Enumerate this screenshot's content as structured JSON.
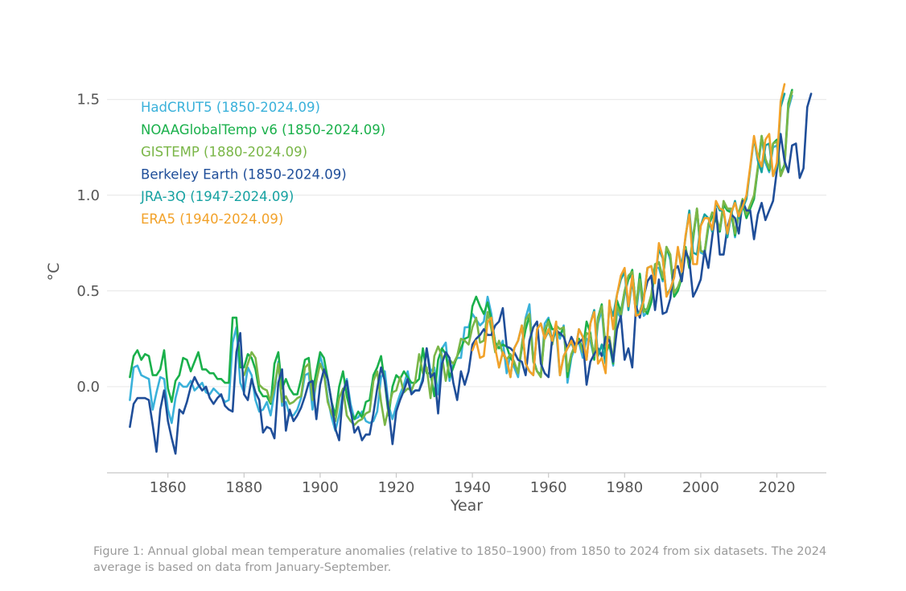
{
  "caption": "Figure 1: Annual global mean temperature anomalies (relative to 1850–1900) from 1850 to 2024 from six datasets. The 2024 average is based on data from January-September.",
  "chart_data": {
    "type": "line",
    "title": "",
    "xlabel": "Year",
    "ylabel": "°C",
    "xlim": [
      1844,
      2033
    ],
    "ylim": [
      -0.45,
      1.65
    ],
    "xticks": [
      1860,
      1880,
      1900,
      1920,
      1940,
      1960,
      1980,
      2000,
      2020
    ],
    "yticks": [
      0.0,
      0.5,
      1.0,
      1.5
    ],
    "xtick_labels": [
      "1860",
      "1880",
      "1900",
      "1920",
      "1940",
      "1960",
      "1980",
      "2000",
      "2020"
    ],
    "ytick_labels": [
      "0.0",
      "0.5",
      "1.0",
      "1.5"
    ],
    "grid": "horizontal",
    "legend_position": "top-left",
    "series": [
      {
        "name": "HadCRUT5 (1850-2024.09)",
        "color": "#3ab1da",
        "start": 1850,
        "values": [
          -0.07,
          0.1,
          0.11,
          0.06,
          0.05,
          0.04,
          -0.12,
          -0.03,
          0.05,
          0.04,
          -0.12,
          -0.19,
          -0.06,
          0.02,
          0.0,
          0.0,
          0.03,
          -0.02,
          0.0,
          0.02,
          -0.03,
          -0.04,
          -0.01,
          -0.03,
          -0.05,
          -0.08,
          -0.07,
          0.23,
          0.31,
          0.02,
          -0.03,
          0.1,
          0.06,
          -0.07,
          -0.13,
          -0.12,
          -0.08,
          -0.15,
          -0.03,
          0.13,
          -0.1,
          -0.08,
          -0.15,
          -0.15,
          -0.12,
          -0.06,
          0.06,
          0.07,
          -0.12,
          0.03,
          0.16,
          0.09,
          -0.06,
          -0.16,
          -0.23,
          -0.15,
          -0.03,
          0.04,
          -0.09,
          -0.17,
          -0.16,
          -0.13,
          -0.18,
          -0.19,
          -0.18,
          -0.13,
          0.05,
          0.08,
          -0.1,
          -0.17,
          -0.1,
          -0.04,
          0.01,
          0.08,
          -0.03,
          -0.02,
          -0.02,
          0.05,
          0.2,
          0.08,
          0.1,
          -0.04,
          0.2,
          0.23,
          0.03,
          0.12,
          0.15,
          0.15,
          0.31,
          0.31,
          0.38,
          0.35,
          0.32,
          0.34,
          0.47,
          0.38,
          0.22,
          0.2,
          0.24,
          0.07,
          0.17,
          0.1,
          0.05,
          0.22,
          0.36,
          0.43,
          0.14,
          0.08,
          0.06,
          0.33,
          0.36,
          0.23,
          0.3,
          0.25,
          0.32,
          0.02,
          0.15,
          0.21,
          0.23,
          0.15,
          0.25,
          0.24,
          0.15,
          0.33,
          0.4,
          0.17,
          0.22,
          0.11,
          0.39,
          0.36,
          0.48,
          0.56,
          0.59,
          0.38,
          0.55,
          0.37,
          0.39,
          0.47,
          0.62,
          0.62,
          0.55,
          0.73,
          0.66,
          0.49,
          0.52,
          0.57,
          0.72,
          0.63,
          0.78,
          0.92,
          0.7,
          0.69,
          0.83,
          0.9,
          0.88,
          0.81,
          0.96,
          0.92,
          0.92,
          0.78,
          0.9,
          0.97,
          0.9,
          0.94,
          0.99,
          1.14,
          1.3,
          1.17,
          1.12,
          1.25,
          1.26,
          1.1,
          1.15,
          1.45,
          1.52
        ]
      },
      {
        "name": "NOAAGlobalTemp v6 (1850-2024.09)",
        "color": "#1ab04b",
        "start": 1850,
        "values": [
          0.05,
          0.16,
          0.19,
          0.14,
          0.17,
          0.16,
          0.06,
          0.06,
          0.09,
          0.19,
          -0.01,
          -0.08,
          0.03,
          0.06,
          0.15,
          0.14,
          0.08,
          0.13,
          0.18,
          0.09,
          0.09,
          0.07,
          0.07,
          0.04,
          0.04,
          0.02,
          0.02,
          0.36,
          0.36,
          0.1,
          0.1,
          0.17,
          0.15,
          0.09,
          -0.02,
          -0.05,
          -0.05,
          -0.09,
          0.12,
          0.18,
          -0.01,
          0.04,
          -0.01,
          -0.04,
          -0.04,
          0.04,
          0.14,
          0.15,
          -0.03,
          0.08,
          0.18,
          0.15,
          0.04,
          -0.08,
          -0.15,
          0.0,
          0.08,
          -0.05,
          -0.13,
          -0.17,
          -0.13,
          -0.16,
          -0.08,
          -0.07,
          0.06,
          0.1,
          0.16,
          0.02,
          -0.15,
          0.0,
          0.06,
          0.04,
          0.08,
          0.05,
          0.02,
          0.02,
          0.04,
          0.2,
          0.07,
          0.07,
          -0.05,
          0.14,
          0.2,
          0.17,
          0.05,
          0.1,
          0.16,
          0.2,
          0.25,
          0.26,
          0.42,
          0.47,
          0.42,
          0.38,
          0.44,
          0.35,
          0.23,
          0.2,
          0.22,
          0.21,
          0.15,
          0.12,
          0.08,
          0.2,
          0.3,
          0.37,
          0.14,
          0.08,
          0.06,
          0.28,
          0.35,
          0.3,
          0.3,
          0.27,
          0.31,
          0.05,
          0.17,
          0.21,
          0.25,
          0.19,
          0.34,
          0.28,
          0.14,
          0.36,
          0.43,
          0.18,
          0.22,
          0.12,
          0.45,
          0.39,
          0.5,
          0.56,
          0.61,
          0.41,
          0.59,
          0.41,
          0.38,
          0.44,
          0.63,
          0.65,
          0.56,
          0.72,
          0.68,
          0.47,
          0.5,
          0.57,
          0.73,
          0.62,
          0.77,
          0.93,
          0.71,
          0.7,
          0.84,
          0.89,
          0.87,
          0.81,
          0.95,
          0.92,
          0.91,
          0.79,
          0.91,
          0.96,
          0.88,
          0.93,
          0.98,
          1.14,
          1.31,
          1.19,
          1.13,
          1.27,
          1.29,
          1.11,
          1.16,
          1.48,
          1.55
        ]
      },
      {
        "name": "GISTEMP (1880-2024.09)",
        "color": "#7ab648",
        "start": 1880,
        "values": [
          0.06,
          0.12,
          0.18,
          0.15,
          0.01,
          -0.01,
          -0.02,
          -0.08,
          0.0,
          0.12,
          -0.08,
          -0.05,
          -0.09,
          -0.08,
          -0.06,
          -0.05,
          0.1,
          0.12,
          -0.07,
          0.03,
          0.12,
          0.07,
          -0.08,
          -0.14,
          -0.18,
          -0.06,
          -0.01,
          -0.15,
          -0.18,
          -0.2,
          -0.18,
          -0.17,
          -0.14,
          -0.13,
          0.03,
          0.08,
          -0.08,
          -0.2,
          -0.11,
          -0.03,
          -0.02,
          0.05,
          -0.03,
          -0.01,
          -0.02,
          0.03,
          0.17,
          0.07,
          0.1,
          -0.06,
          0.16,
          0.21,
          0.16,
          0.03,
          0.14,
          0.12,
          0.16,
          0.25,
          0.24,
          0.22,
          0.31,
          0.36,
          0.23,
          0.24,
          0.39,
          0.3,
          0.18,
          0.24,
          0.17,
          0.14,
          0.17,
          0.13,
          0.07,
          0.22,
          0.35,
          0.38,
          0.13,
          0.08,
          0.05,
          0.3,
          0.34,
          0.22,
          0.32,
          0.3,
          0.31,
          0.08,
          0.17,
          0.22,
          0.24,
          0.18,
          0.28,
          0.27,
          0.16,
          0.35,
          0.42,
          0.21,
          0.26,
          0.13,
          0.42,
          0.37,
          0.5,
          0.58,
          0.6,
          0.42,
          0.56,
          0.39,
          0.41,
          0.48,
          0.64,
          0.65,
          0.57,
          0.73,
          0.69,
          0.49,
          0.52,
          0.58,
          0.72,
          0.64,
          0.79,
          0.93,
          0.71,
          0.7,
          0.85,
          0.91,
          0.89,
          0.82,
          0.97,
          0.93,
          0.93,
          0.8,
          0.91,
          0.98,
          0.9,
          0.95,
          1.0,
          1.15,
          1.31,
          1.19,
          1.14,
          1.27,
          1.28,
          1.1,
          1.15,
          1.46,
          1.54
        ]
      },
      {
        "name": "Berkeley Earth (1850-2024.09)",
        "color": "#1f4e99",
        "start": 1850,
        "values": [
          -0.21,
          -0.09,
          -0.06,
          -0.06,
          -0.06,
          -0.07,
          -0.2,
          -0.34,
          -0.12,
          -0.02,
          -0.18,
          -0.27,
          -0.35,
          -0.12,
          -0.14,
          -0.08,
          0.0,
          0.05,
          0.01,
          -0.02,
          0.0,
          -0.06,
          -0.09,
          -0.06,
          -0.04,
          -0.1,
          -0.12,
          -0.13,
          0.18,
          0.28,
          -0.04,
          -0.07,
          0.04,
          -0.03,
          -0.07,
          -0.24,
          -0.21,
          -0.22,
          -0.27,
          0.02,
          0.09,
          -0.23,
          -0.12,
          -0.18,
          -0.15,
          -0.11,
          -0.05,
          0.02,
          0.03,
          -0.17,
          0.01,
          0.09,
          0.04,
          -0.08,
          -0.22,
          -0.28,
          -0.03,
          0.03,
          -0.12,
          -0.24,
          -0.21,
          -0.28,
          -0.25,
          -0.25,
          -0.14,
          -0.01,
          0.1,
          0.03,
          -0.12,
          -0.3,
          -0.13,
          -0.07,
          -0.02,
          0.04,
          -0.04,
          -0.02,
          -0.02,
          0.03,
          0.2,
          0.05,
          0.07,
          -0.14,
          0.12,
          0.18,
          0.15,
          0.02,
          -0.07,
          0.08,
          0.01,
          0.08,
          0.22,
          0.25,
          0.27,
          0.3,
          0.27,
          0.27,
          0.32,
          0.34,
          0.41,
          0.21,
          0.2,
          0.18,
          0.14,
          0.13,
          0.06,
          0.24,
          0.31,
          0.34,
          0.12,
          0.07,
          0.05,
          0.26,
          0.29,
          0.28,
          0.26,
          0.2,
          0.26,
          0.22,
          0.23,
          0.25,
          0.01,
          0.13,
          0.17,
          0.2,
          0.16,
          0.26,
          0.24,
          0.13,
          0.3,
          0.37,
          0.14,
          0.2,
          0.1,
          0.42,
          0.36,
          0.47,
          0.55,
          0.58,
          0.4,
          0.56,
          0.38,
          0.39,
          0.46,
          0.61,
          0.63,
          0.55,
          0.71,
          0.66,
          0.47,
          0.51,
          0.56,
          0.71,
          0.62,
          0.78,
          0.93,
          0.69,
          0.69,
          0.83,
          0.9,
          0.88,
          0.8,
          0.97,
          0.92,
          0.92,
          0.77,
          0.9,
          0.96,
          0.87,
          0.92,
          0.97,
          1.13,
          1.32,
          1.18,
          1.12,
          1.26,
          1.27,
          1.09,
          1.14,
          1.46,
          1.53
        ]
      },
      {
        "name": "JRA-3Q (1947-2024.09)",
        "color": "#17a2a2",
        "start": 1947,
        "values": [
          0.1,
          0.18,
          0.14,
          0.05,
          0.2,
          0.24,
          0.32,
          0.12,
          0.08,
          0.06,
          0.3,
          0.33,
          0.25,
          0.29,
          0.24,
          0.3,
          0.06,
          0.16,
          0.2,
          0.23,
          0.18,
          0.3,
          0.26,
          0.14,
          0.33,
          0.4,
          0.16,
          0.22,
          0.12,
          0.43,
          0.37,
          0.48,
          0.56,
          0.6,
          0.4,
          0.56,
          0.38,
          0.39,
          0.46,
          0.62,
          0.63,
          0.56,
          0.72,
          0.67,
          0.48,
          0.51,
          0.57,
          0.72,
          0.63,
          0.78,
          0.92,
          0.7,
          0.69,
          0.84,
          0.9,
          0.88,
          0.81,
          0.96,
          0.92,
          0.92,
          0.78,
          0.9,
          0.97,
          0.88,
          0.93,
          0.98,
          1.14,
          1.3,
          1.18,
          1.12,
          1.26,
          1.27,
          1.1,
          1.15,
          1.46,
          1.53
        ]
      },
      {
        "name": "ERA5 (1940-2024.09)",
        "color": "#f2a22a",
        "start": 1940,
        "values": [
          0.19,
          0.24,
          0.15,
          0.16,
          0.34,
          0.36,
          0.2,
          0.1,
          0.18,
          0.14,
          0.05,
          0.2,
          0.24,
          0.32,
          0.12,
          0.08,
          0.06,
          0.3,
          0.33,
          0.25,
          0.3,
          0.24,
          0.34,
          0.06,
          0.16,
          0.2,
          0.24,
          0.18,
          0.3,
          0.26,
          0.14,
          0.33,
          0.39,
          0.12,
          0.15,
          0.07,
          0.45,
          0.3,
          0.48,
          0.58,
          0.62,
          0.42,
          0.58,
          0.37,
          0.38,
          0.45,
          0.62,
          0.63,
          0.54,
          0.75,
          0.68,
          0.47,
          0.51,
          0.57,
          0.73,
          0.6,
          0.79,
          0.9,
          0.64,
          0.64,
          0.84,
          0.88,
          0.88,
          0.82,
          0.97,
          0.93,
          0.92,
          0.8,
          0.91,
          0.96,
          0.89,
          0.94,
          1.0,
          1.15,
          1.31,
          1.2,
          1.15,
          1.29,
          1.32,
          1.1,
          1.17,
          1.49,
          1.58
        ]
      }
    ]
  }
}
